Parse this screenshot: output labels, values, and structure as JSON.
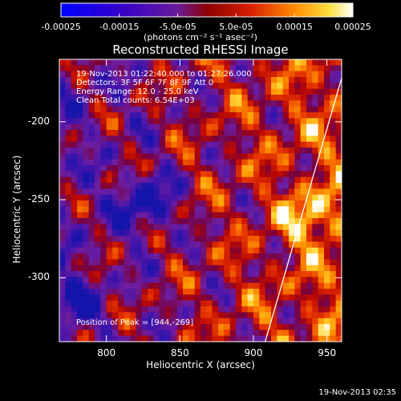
{
  "colorbar": {
    "ticks": [
      "-0.00025",
      "-0.00015",
      "-5.0e-05",
      "5.0e-05",
      "0.00015",
      "0.00025"
    ],
    "units": "(photons cm⁻² s⁻¹ asec⁻²)"
  },
  "title": "Reconstructed RHESSI Image",
  "info": {
    "time": "19-Nov-2013 01:22:40.000 to 01:27:26.000",
    "detectors": "Detectors: 3F 5F 6F 7F 8F 9F  Att 0",
    "energy": "Energy Range: 12.0 - 25.0 keV",
    "clean": "Clean     Total counts: 6.54E+03"
  },
  "peak_label": "Position of Peak = [944,-269]",
  "timestamp": "19-Nov-2013 02:35",
  "chart_data": {
    "type": "heatmap",
    "title": "Reconstructed RHESSI Image",
    "xlabel": "Heliocentric X (arcsec)",
    "ylabel": "Heliocentric Y (arcsec)",
    "xlim": [
      768,
      960
    ],
    "ylim": [
      -341,
      -160
    ],
    "xticks": [
      "800",
      "850",
      "900",
      "950"
    ],
    "yticks": [
      "-200",
      "-250",
      "-300"
    ],
    "colorbar_range": [
      -0.00025,
      0.00025
    ],
    "colormap": "heat (blue-purple-red-orange-yellow-white)",
    "peak_position": [
      944,
      -269
    ],
    "limb_curve": [
      [
        908,
        -341
      ],
      [
        960,
        -172
      ]
    ]
  }
}
